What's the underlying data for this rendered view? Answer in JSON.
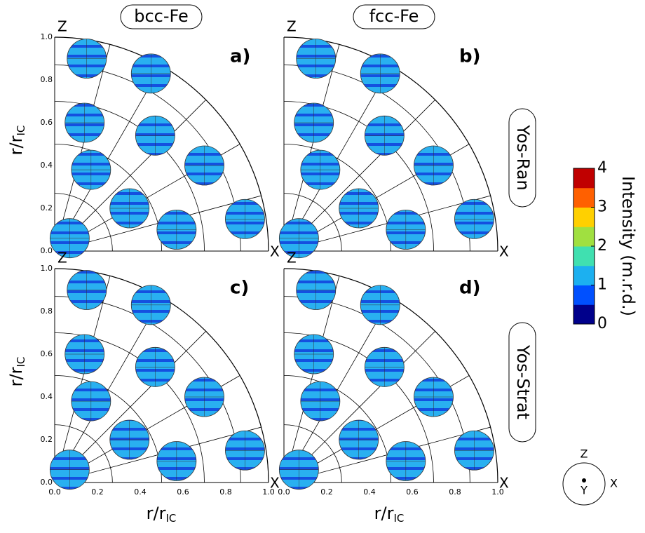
{
  "columns": [
    "bcc-Fe",
    "fcc-Fe"
  ],
  "rows": [
    "Yos-Ran",
    "Yos-Strat"
  ],
  "panels": [
    "a)",
    "b)",
    "c)",
    "d)"
  ],
  "axis_letters": {
    "z": "Z",
    "x": "X"
  },
  "xlabel": {
    "main": "r/r",
    "sub": "IC"
  },
  "ylabel": {
    "main": "r/r",
    "sub": "IC"
  },
  "ticks": [
    {
      "value": 0,
      "label": "0.0"
    },
    {
      "value": 0.2,
      "label": "0.2"
    },
    {
      "value": 0.4,
      "label": "0.4"
    },
    {
      "value": 0.6,
      "label": "0.6"
    },
    {
      "value": 0.8,
      "label": "0.8"
    },
    {
      "value": 1,
      "label": "1.0"
    }
  ],
  "colorbar": {
    "label": "Intensity (m.r.d.)",
    "lim": [
      0,
      4
    ],
    "ticks": [
      0,
      1,
      2,
      3,
      4
    ]
  },
  "inset": {
    "z": "Z",
    "x": "X",
    "y": "Y"
  }
}
